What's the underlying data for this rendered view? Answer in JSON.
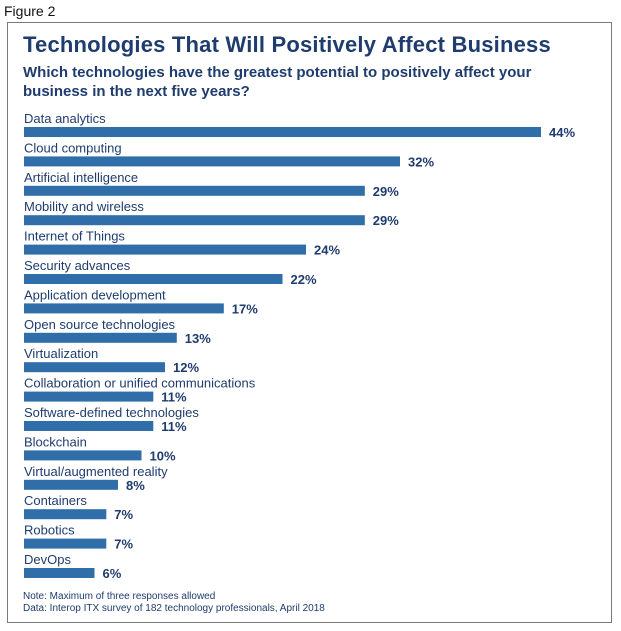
{
  "figure_label": "Figure 2",
  "chart_data": {
    "type": "bar",
    "orientation": "horizontal",
    "title": "Technologies That Will Positively Affect Business",
    "subtitle": "Which technologies have the greatest potential to positively affect your business in the next five years?",
    "categories": [
      "Data analytics",
      "Cloud computing",
      "Artificial intelligence",
      "Mobility and wireless",
      "Internet of Things",
      "Security advances",
      "Application development",
      "Open source technologies",
      "Virtualization",
      "Collaboration or unified communications",
      "Software-defined technologies",
      "Blockchain",
      "Virtual/augmented reality",
      "Containers",
      "Robotics",
      "DevOps"
    ],
    "values": [
      44,
      32,
      29,
      29,
      24,
      22,
      17,
      13,
      12,
      11,
      11,
      10,
      8,
      7,
      7,
      6
    ],
    "value_labels": [
      "44%",
      "32%",
      "29%",
      "29%",
      "24%",
      "22%",
      "17%",
      "13%",
      "12%",
      "11%",
      "11%",
      "10%",
      "8%",
      "7%",
      "7%",
      "6%"
    ],
    "xlim": [
      0,
      44
    ],
    "bar_color": "#2f6ea8",
    "text_color": "#1f3c6e",
    "grid": false,
    "legend": "none"
  },
  "notes": [
    "Note: Maximum of three responses allowed",
    "Data: Interop ITX survey of 182 technology professionals, April 2018"
  ]
}
